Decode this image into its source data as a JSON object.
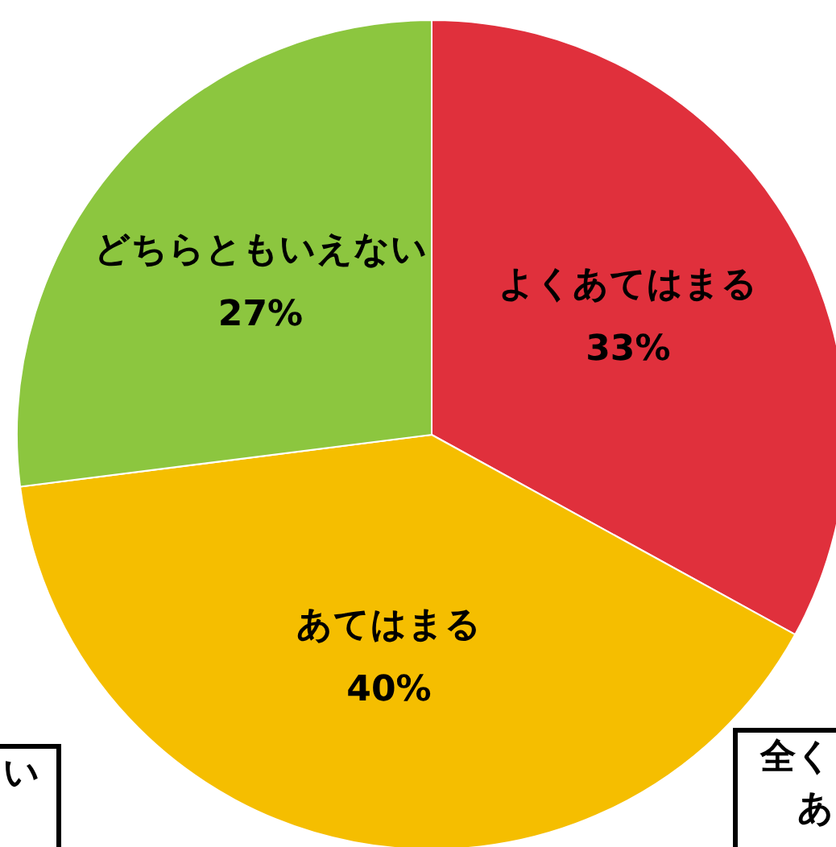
{
  "chart_data": {
    "type": "pie",
    "categories": [
      "よくあてはまる",
      "あてはまる",
      "どちらともいえない"
    ],
    "values": [
      33,
      40,
      27
    ],
    "colors": [
      "#e0303c",
      "#f5be00",
      "#8cc63f"
    ],
    "value_labels": [
      "33%",
      "40%",
      "27%"
    ],
    "annotations": [
      "い",
      "全く",
      "あ"
    ],
    "legend": false
  }
}
